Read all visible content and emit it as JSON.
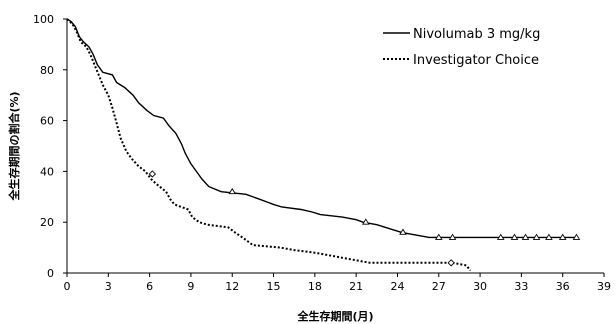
{
  "chart_data": {
    "type": "line",
    "title": "",
    "xlabel": "全生存期間(月)",
    "ylabel": "全生存期間の割合(%)",
    "xlim": [
      0,
      39
    ],
    "ylim": [
      0,
      100
    ],
    "x_ticks": [
      0,
      3,
      6,
      9,
      12,
      15,
      18,
      21,
      24,
      27,
      30,
      33,
      36,
      39
    ],
    "y_ticks": [
      0,
      20,
      40,
      60,
      80,
      100
    ],
    "grid": false,
    "legend_position": "top-right",
    "series": [
      {
        "name": "Nivolumab 3 mg/kg",
        "style": "solid",
        "color": "#000000",
        "censor_marker": "triangle",
        "points": [
          [
            0,
            100
          ],
          [
            0.3,
            99
          ],
          [
            0.6,
            97
          ],
          [
            0.9,
            93
          ],
          [
            1.2,
            91
          ],
          [
            1.6,
            89
          ],
          [
            1.9,
            86
          ],
          [
            2.2,
            82
          ],
          [
            2.6,
            79
          ],
          [
            3.3,
            78
          ],
          [
            3.6,
            75
          ],
          [
            4.2,
            73
          ],
          [
            4.8,
            70
          ],
          [
            5.2,
            67
          ],
          [
            5.8,
            64
          ],
          [
            6.3,
            62
          ],
          [
            7.0,
            61
          ],
          [
            7.4,
            58
          ],
          [
            7.9,
            55
          ],
          [
            8.3,
            51
          ],
          [
            8.6,
            47
          ],
          [
            9.0,
            43
          ],
          [
            9.4,
            40
          ],
          [
            9.8,
            37
          ],
          [
            10.3,
            34
          ],
          [
            11.2,
            32
          ],
          [
            13.0,
            31
          ],
          [
            14.0,
            29
          ],
          [
            14.5,
            28
          ],
          [
            15.0,
            27
          ],
          [
            15.6,
            26
          ],
          [
            17.0,
            25
          ],
          [
            17.8,
            24
          ],
          [
            18.4,
            23
          ],
          [
            20.0,
            22
          ],
          [
            21.0,
            21
          ],
          [
            21.5,
            20
          ],
          [
            22.5,
            19
          ],
          [
            24.3,
            16
          ],
          [
            26.3,
            14
          ],
          [
            37,
            14
          ]
        ],
        "censor_points": [
          [
            12.0,
            32
          ],
          [
            21.7,
            20
          ],
          [
            24.4,
            16
          ],
          [
            27.0,
            14
          ],
          [
            28.0,
            14
          ],
          [
            31.5,
            14
          ],
          [
            32.5,
            14
          ],
          [
            33.3,
            14
          ],
          [
            34.1,
            14
          ],
          [
            35.0,
            14
          ],
          [
            36.0,
            14
          ],
          [
            37.0,
            14
          ]
        ]
      },
      {
        "name": "Investigator Choice",
        "style": "dotted",
        "color": "#000000",
        "censor_marker": "diamond",
        "points": [
          [
            0,
            100
          ],
          [
            0.4,
            98
          ],
          [
            0.7,
            95
          ],
          [
            1.0,
            91
          ],
          [
            1.4,
            89
          ],
          [
            1.7,
            86
          ],
          [
            2.0,
            82
          ],
          [
            2.3,
            78
          ],
          [
            2.6,
            74
          ],
          [
            3.0,
            70
          ],
          [
            3.3,
            65
          ],
          [
            3.6,
            59
          ],
          [
            3.9,
            53
          ],
          [
            4.3,
            48
          ],
          [
            4.7,
            45
          ],
          [
            5.2,
            42
          ],
          [
            5.7,
            40
          ],
          [
            6.1,
            37
          ],
          [
            6.5,
            35
          ],
          [
            7.2,
            32
          ],
          [
            7.5,
            29
          ],
          [
            7.8,
            27
          ],
          [
            8.8,
            25
          ],
          [
            9.1,
            22
          ],
          [
            9.6,
            20
          ],
          [
            10.2,
            19
          ],
          [
            11.7,
            18
          ],
          [
            12.2,
            16
          ],
          [
            13.0,
            13
          ],
          [
            13.5,
            11
          ],
          [
            15.5,
            10
          ],
          [
            16.5,
            9
          ],
          [
            18.0,
            8
          ],
          [
            19.0,
            7
          ],
          [
            20.0,
            6
          ],
          [
            21.0,
            5
          ],
          [
            22.0,
            4
          ],
          [
            27.0,
            4
          ],
          [
            28.0,
            4
          ],
          [
            29.0,
            3
          ],
          [
            29.3,
            1
          ]
        ],
        "censor_points": [
          [
            6.2,
            39
          ],
          [
            27.9,
            4
          ]
        ]
      }
    ]
  }
}
